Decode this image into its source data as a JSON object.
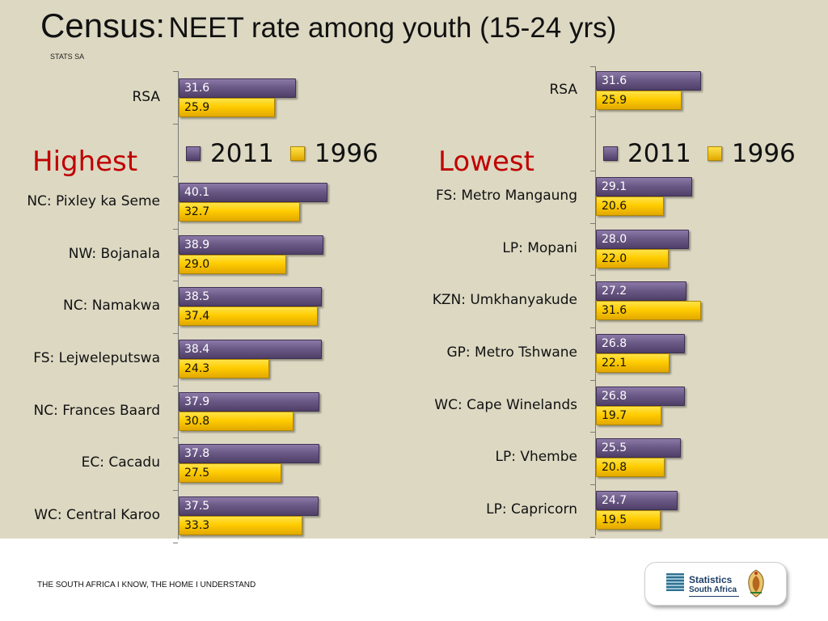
{
  "header": {
    "title_prefix": "Census:",
    "title_main": "NEET rate among youth (15-24 yrs)",
    "org": "STATS SA"
  },
  "footer": {
    "tagline": "THE SOUTH AFRICA I KNOW, THE HOME I UNDERSTAND",
    "logo_line1": "Statistics",
    "logo_line2": "South Africa"
  },
  "colors": {
    "s2011": "#6b5a86",
    "s1996": "#ffcc00",
    "section_label": "#c00000",
    "background": "#dcd8c2"
  },
  "chart_data": [
    {
      "type": "bar",
      "orientation": "horizontal",
      "section_label": "Highest",
      "legend": [
        "2011",
        "1996"
      ],
      "legend_placement": "inline",
      "reference": {
        "category": "RSA",
        "values": {
          "2011": 31.6,
          "1996": 25.9
        }
      },
      "categories": [
        "NC: Pixley ka Seme",
        "NW: Bojanala",
        "NC: Namakwa",
        "FS: Lejweleputswa",
        "NC: Frances Baard",
        "EC: Cacadu",
        "WC: Central Karoo"
      ],
      "series": [
        {
          "name": "2011",
          "values": [
            40.1,
            38.9,
            38.5,
            38.4,
            37.9,
            37.8,
            37.5
          ]
        },
        {
          "name": "1996",
          "values": [
            32.7,
            29.0,
            37.4,
            24.3,
            30.8,
            27.5,
            33.3
          ]
        }
      ],
      "xlim": [
        0,
        45
      ]
    },
    {
      "type": "bar",
      "orientation": "horizontal",
      "section_label": "Lowest",
      "legend": [
        "2011",
        "1996"
      ],
      "legend_placement": "inline",
      "reference": {
        "category": "RSA",
        "values": {
          "2011": 31.6,
          "1996": 25.9
        }
      },
      "categories": [
        "FS: Metro Mangaung",
        "LP: Mopani",
        "KZN: Umkhanyakude",
        "GP: Metro  Tshwane",
        "WC: Cape Winelands",
        "LP: Vhembe",
        "LP: Capricorn"
      ],
      "series": [
        {
          "name": "2011",
          "values": [
            29.1,
            28.0,
            27.2,
            26.8,
            26.8,
            25.5,
            24.7
          ]
        },
        {
          "name": "1996",
          "values": [
            20.6,
            22.0,
            31.6,
            22.1,
            19.7,
            20.8,
            19.5
          ]
        }
      ],
      "xlim": [
        0,
        45
      ]
    }
  ]
}
